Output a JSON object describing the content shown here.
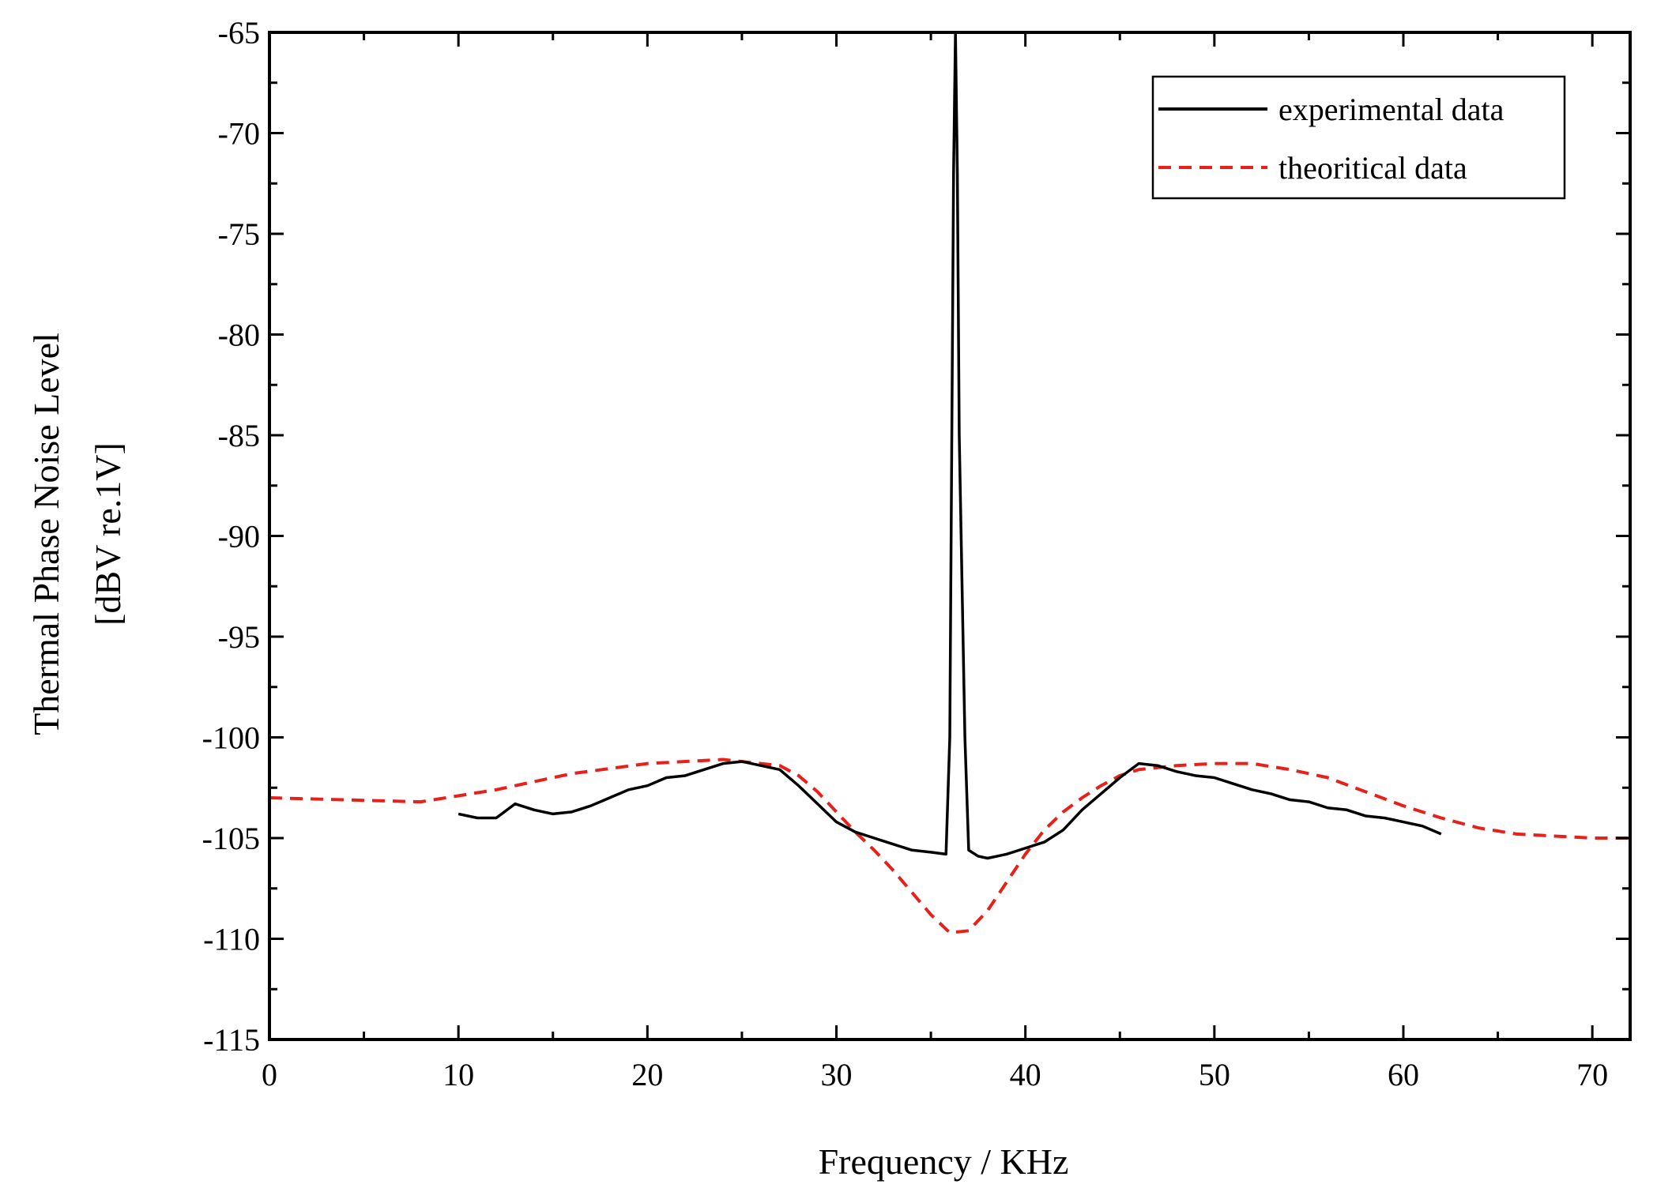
{
  "chart_data": {
    "type": "line",
    "title": "",
    "xlabel": "Frequency / KHz",
    "ylabel_lines": [
      "Thermal Phase Noise Level",
      "[dBV re.1V]"
    ],
    "xlim": [
      0,
      72
    ],
    "ylim": [
      -115,
      -65
    ],
    "x_ticks": [
      0,
      10,
      20,
      30,
      40,
      50,
      60,
      70
    ],
    "x_tick_labels": [
      "0",
      "10",
      "20",
      "30",
      "40",
      "50",
      "60",
      "70"
    ],
    "y_ticks": [
      -65,
      -70,
      -75,
      -80,
      -85,
      -90,
      -95,
      -100,
      -105,
      -110,
      -115
    ],
    "y_tick_labels": [
      "-65",
      "-70",
      "-75",
      "-80",
      "-85",
      "-90",
      "-95",
      "-100",
      "-105",
      "-110",
      "-115"
    ],
    "grid": false,
    "legend_position": "top-right",
    "series": [
      {
        "name": "experimental data",
        "color": "#000000",
        "dash": "solid",
        "x": [
          10,
          11,
          12,
          13,
          14,
          15,
          16,
          17,
          18,
          19,
          20,
          21,
          22,
          23,
          24,
          25,
          26,
          27,
          28,
          29,
          30,
          31,
          32,
          33,
          34,
          35,
          35.8,
          36.0,
          36.2,
          36.3,
          36.4,
          36.5,
          36.6,
          36.8,
          37.0,
          37.5,
          38,
          39,
          40,
          41,
          42,
          43,
          44,
          45,
          46,
          47,
          48,
          49,
          50,
          51,
          52,
          53,
          54,
          55,
          56,
          57,
          58,
          59,
          60,
          61,
          62
        ],
        "y": [
          -103.8,
          -104.0,
          -104.0,
          -103.3,
          -103.6,
          -103.8,
          -103.7,
          -103.4,
          -103.0,
          -102.6,
          -102.4,
          -102.0,
          -101.9,
          -101.6,
          -101.3,
          -101.2,
          -101.4,
          -101.6,
          -102.4,
          -103.3,
          -104.2,
          -104.7,
          -105.0,
          -105.3,
          -105.6,
          -105.7,
          -105.8,
          -100.0,
          -72.0,
          -65.0,
          -72.0,
          -85.0,
          -90.0,
          -100.0,
          -105.6,
          -105.9,
          -106.0,
          -105.8,
          -105.5,
          -105.2,
          -104.6,
          -103.6,
          -102.8,
          -102.0,
          -101.3,
          -101.4,
          -101.7,
          -101.9,
          -102.0,
          -102.3,
          -102.6,
          -102.8,
          -103.1,
          -103.2,
          -103.5,
          -103.6,
          -103.9,
          -104.0,
          -104.2,
          -104.4,
          -104.8
        ]
      },
      {
        "name": "theoritical data",
        "color": "#e8201a",
        "dash": "dashed",
        "x": [
          0,
          4,
          8,
          12,
          16,
          20,
          24,
          27,
          28,
          29,
          30,
          31,
          32,
          33,
          34,
          35,
          36,
          37,
          38,
          39,
          40,
          41,
          42,
          43,
          44,
          45,
          46,
          48,
          50,
          52,
          54,
          56,
          58,
          60,
          62,
          64,
          66,
          68,
          70,
          72
        ],
        "y": [
          -103.0,
          -103.1,
          -103.2,
          -102.6,
          -101.8,
          -101.3,
          -101.1,
          -101.4,
          -101.9,
          -102.7,
          -103.7,
          -104.7,
          -105.6,
          -106.6,
          -107.7,
          -108.8,
          -109.7,
          -109.6,
          -108.6,
          -107.2,
          -105.8,
          -104.6,
          -103.7,
          -103.0,
          -102.4,
          -101.9,
          -101.6,
          -101.4,
          -101.3,
          -101.3,
          -101.6,
          -102.0,
          -102.7,
          -103.4,
          -104.0,
          -104.5,
          -104.8,
          -104.9,
          -105.0,
          -105.0
        ]
      }
    ]
  }
}
